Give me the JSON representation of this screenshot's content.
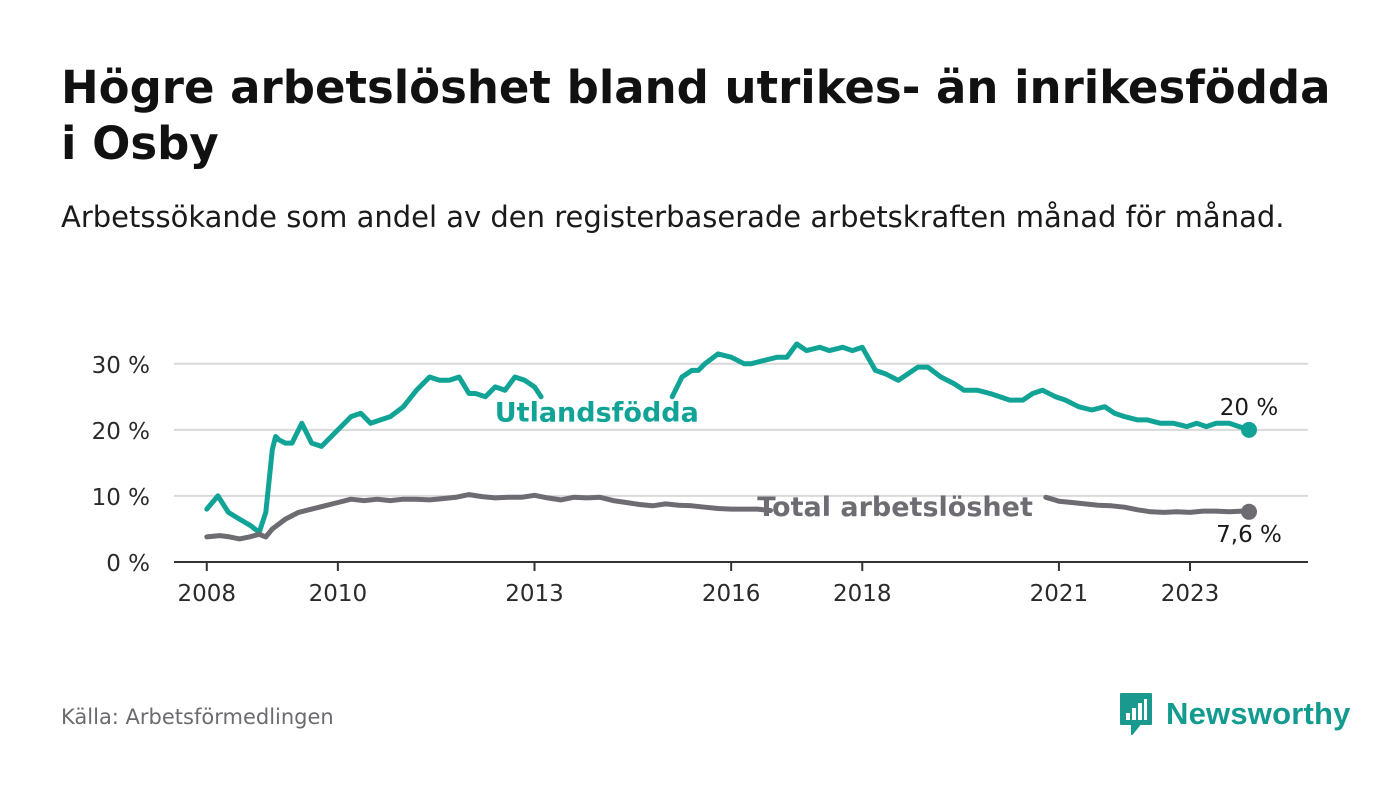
{
  "title": "Högre arbetslöshet bland utrikes- än inrikesfödda i Osby",
  "subtitle": "Arbetssökande som andel av den registerbaserade arbetskraften månad för månad.",
  "source": "Källa: Arbetsförmedlingen",
  "brand": {
    "name": "Newsworthy",
    "icon": "bar-chart-speech-bubble-icon",
    "color": "#1a9a8e"
  },
  "colors": {
    "utlandsfodda": "#10a396",
    "total": "#6e6b73",
    "grid": "#d9d9d9",
    "axis": "#333333"
  },
  "chart_data": {
    "type": "line",
    "title": "Högre arbetslöshet bland utrikes- än inrikesfödda i Osby",
    "xlabel": "",
    "ylabel": "",
    "ylim": [
      0,
      30
    ],
    "xlim": [
      2007.5,
      2024.8
    ],
    "yticks": [
      0,
      10,
      20,
      30
    ],
    "ytick_labels": [
      "0 %",
      "10 %",
      "20 %",
      "30 %"
    ],
    "xticks": [
      2008,
      2010,
      2013,
      2016,
      2018,
      2021,
      2023
    ],
    "xtick_labels": [
      "2008",
      "2010",
      "2013",
      "2016",
      "2018",
      "2021",
      "2023"
    ],
    "series": [
      {
        "name": "Utlandsfödda",
        "key": "utlandsfodda",
        "end_label": "20 %",
        "x": [
          2008.0,
          2008.17,
          2008.33,
          2008.5,
          2008.67,
          2008.8,
          2008.9,
          2009.0,
          2009.05,
          2009.1,
          2009.2,
          2009.3,
          2009.45,
          2009.6,
          2009.75,
          2009.9,
          2010.0,
          2010.2,
          2010.35,
          2010.5,
          2010.65,
          2010.8,
          2011.0,
          2011.2,
          2011.4,
          2011.55,
          2011.7,
          2011.85,
          2012.0,
          2012.1,
          2012.25,
          2012.4,
          2012.55,
          2012.7,
          2012.85,
          2013.0,
          2013.1,
          2015.1,
          2015.25,
          2015.4,
          2015.5,
          2015.6,
          2015.8,
          2016.0,
          2016.2,
          2016.3,
          2016.5,
          2016.7,
          2016.85,
          2017.0,
          2017.15,
          2017.35,
          2017.5,
          2017.7,
          2017.85,
          2018.0,
          2018.2,
          2018.35,
          2018.55,
          2018.7,
          2018.85,
          2019.0,
          2019.2,
          2019.4,
          2019.55,
          2019.75,
          2019.95,
          2020.1,
          2020.25,
          2020.45,
          2020.6,
          2020.75,
          2020.95,
          2021.1,
          2021.3,
          2021.5,
          2021.7,
          2021.85,
          2022.0,
          2022.2,
          2022.35,
          2022.55,
          2022.75,
          2022.95,
          2023.1,
          2023.25,
          2023.4,
          2023.6,
          2023.75,
          2023.9
        ],
        "values": [
          8,
          10,
          7.5,
          6.5,
          5.5,
          4.5,
          7.5,
          17,
          19,
          18.5,
          18,
          18,
          21,
          18,
          17.5,
          19,
          20,
          22,
          22.5,
          21,
          21.5,
          22,
          23.5,
          26,
          28,
          27.5,
          27.5,
          28,
          25.5,
          25.5,
          25,
          26.5,
          26,
          28,
          27.5,
          26.5,
          25,
          25,
          28,
          29,
          29,
          30,
          31.5,
          31,
          30,
          30,
          30.5,
          31,
          31,
          33,
          32,
          32.5,
          32,
          32.5,
          32,
          32.5,
          29,
          28.5,
          27.5,
          28.5,
          29.5,
          29.5,
          28,
          27,
          26,
          26,
          25.5,
          25,
          24.5,
          24.5,
          25.5,
          26,
          25,
          24.5,
          23.5,
          23,
          23.5,
          22.5,
          22,
          21.5,
          21.5,
          21,
          21,
          20.5,
          21,
          20.5,
          21,
          21,
          20.5,
          20
        ]
      },
      {
        "name": "Total arbetslöshet",
        "key": "total",
        "end_label": "7,6 %",
        "x": [
          2008.0,
          2008.2,
          2008.35,
          2008.5,
          2008.65,
          2008.8,
          2008.9,
          2009.0,
          2009.2,
          2009.4,
          2009.6,
          2009.8,
          2010.0,
          2010.2,
          2010.4,
          2010.6,
          2010.8,
          2011.0,
          2011.2,
          2011.4,
          2011.6,
          2011.8,
          2012.0,
          2012.2,
          2012.4,
          2012.6,
          2012.8,
          2013.0,
          2013.2,
          2013.4,
          2013.6,
          2013.8,
          2014.0,
          2014.2,
          2014.4,
          2014.6,
          2014.8,
          2015.0,
          2015.2,
          2015.4,
          2015.6,
          2015.8,
          2016.0,
          2016.2,
          2016.4,
          2016.6,
          2020.8,
          2020.9,
          2021.0,
          2021.2,
          2021.4,
          2021.6,
          2021.8,
          2022.0,
          2022.2,
          2022.4,
          2022.6,
          2022.8,
          2023.0,
          2023.2,
          2023.4,
          2023.6,
          2023.8,
          2023.9
        ],
        "values": [
          3.8,
          4,
          3.8,
          3.5,
          3.8,
          4.2,
          3.8,
          5,
          6.5,
          7.5,
          8,
          8.5,
          9,
          9.5,
          9.3,
          9.5,
          9.3,
          9.5,
          9.5,
          9.4,
          9.6,
          9.8,
          10.2,
          9.9,
          9.7,
          9.8,
          9.8,
          10.1,
          9.7,
          9.4,
          9.8,
          9.7,
          9.8,
          9.3,
          9,
          8.7,
          8.5,
          8.8,
          8.6,
          8.5,
          8.3,
          8.1,
          8,
          8,
          8,
          7.8,
          9.8,
          9.5,
          9.2,
          9.0,
          8.8,
          8.6,
          8.5,
          8.3,
          7.9,
          7.6,
          7.5,
          7.6,
          7.5,
          7.7,
          7.7,
          7.6,
          7.7,
          7.6
        ]
      }
    ],
    "annotations": [
      {
        "text": "Utlandsfödda",
        "series": "utlandsfodda",
        "x": 2013.95,
        "y": 22.5
      },
      {
        "text": "Total arbetslöshet",
        "series": "total",
        "x": 2018.5,
        "y": 8.2
      }
    ]
  }
}
